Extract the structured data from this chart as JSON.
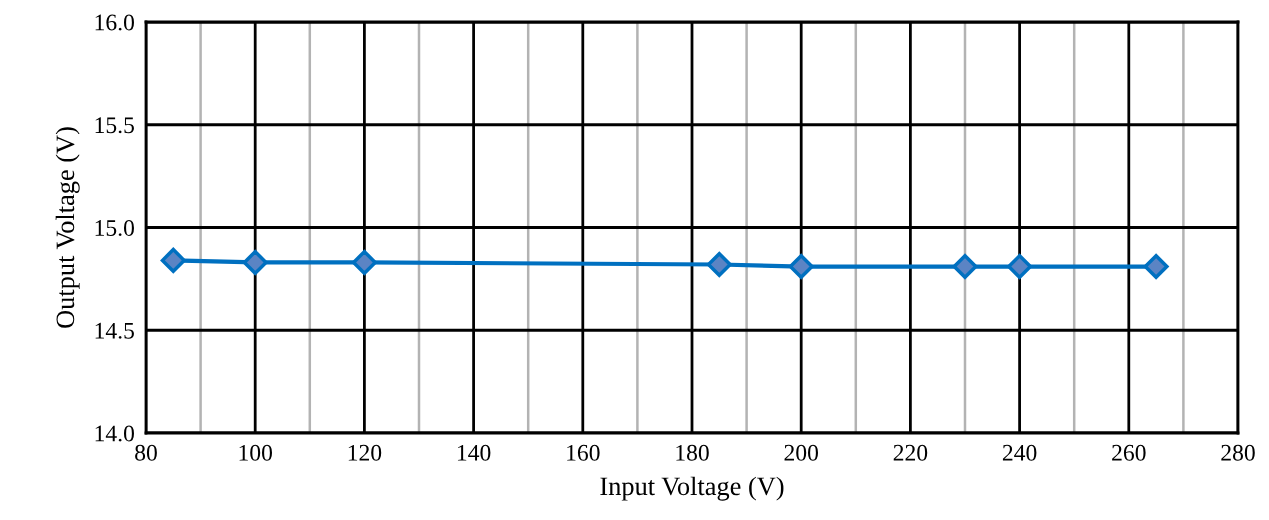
{
  "chart_data": {
    "type": "line",
    "xlabel": "Input Voltage (V)",
    "ylabel": "Output Voltage (V)",
    "x": [
      85,
      100,
      120,
      185,
      200,
      230,
      240,
      265
    ],
    "series": [
      {
        "color": "#0070c0",
        "values": [
          14.84,
          14.83,
          14.83,
          14.82,
          14.81,
          14.81,
          14.81,
          14.81
        ]
      }
    ],
    "xlim": [
      80,
      280
    ],
    "xticks": [
      80,
      {
        "value": 90,
        "label": null
      },
      100,
      {
        "value": 110,
        "label": null
      },
      120,
      {
        "value": 130,
        "label": null
      },
      140,
      {
        "value": 150,
        "label": null
      },
      160,
      {
        "value": 170,
        "label": null
      },
      180,
      {
        "value": 190,
        "label": null
      },
      200,
      {
        "value": 210,
        "label": null
      },
      220,
      {
        "value": 230,
        "label": null
      },
      240,
      {
        "value": 250,
        "label": null
      },
      260,
      {
        "value": 270,
        "label": null
      },
      280
    ],
    "ylim": [
      14.0,
      16.0
    ],
    "yticks": [
      {
        "value": 14.0,
        "label": "14.0"
      },
      {
        "value": 14.5,
        "label": "14.5"
      },
      {
        "value": 15.0,
        "label": "15.0"
      },
      {
        "value": 15.5,
        "label": "15.5"
      },
      {
        "value": 16.0,
        "label": "16.0"
      }
    ],
    "grid": true,
    "marker": "diamond",
    "line_style": "solid",
    "legend": false
  }
}
